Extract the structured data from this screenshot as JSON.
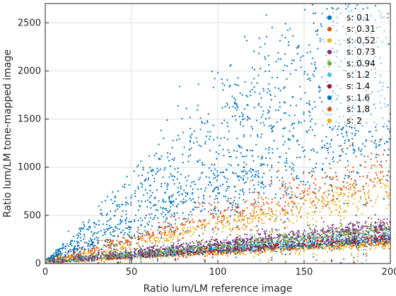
{
  "chart_data": {
    "type": "scatter",
    "title": "",
    "xlabel": "Ratio lum/LM reference image",
    "ylabel": "Ratio lum/LM tone-mapped image",
    "xlim": [
      0,
      200
    ],
    "ylim": [
      0,
      2700
    ],
    "xticks": [
      "0",
      "50",
      "100",
      "150",
      "200"
    ],
    "yticks": [
      "0",
      "500",
      "1000",
      "1500",
      "2000",
      "2500"
    ],
    "grid": true,
    "legend_position": "top-right",
    "series": [
      {
        "name": "s: 0.1",
        "color": "#0072BD",
        "slopes": [
          7.3,
          13.4
        ],
        "noise": 0.22
      },
      {
        "name": "s: 0.31",
        "color": "#D95319",
        "slopes": [
          4.6
        ],
        "noise": 0.18
      },
      {
        "name": "s: 0.52",
        "color": "#EDB120",
        "slopes": [
          3.7
        ],
        "noise": 0.12
      },
      {
        "name": "s: 0.73",
        "color": "#7E2F8E",
        "slopes": [
          1.9
        ],
        "noise": 0.12
      },
      {
        "name": "s: 0.94",
        "color": "#77AC30",
        "slopes": [
          1.7
        ],
        "noise": 0.1
      },
      {
        "name": "s: 1.2",
        "color": "#4DBEEE",
        "slopes": [
          1.5
        ],
        "noise": 0.1
      },
      {
        "name": "s: 1.4",
        "color": "#A2142F",
        "slopes": [
          1.3
        ],
        "noise": 0.1
      },
      {
        "name": "s: 1.6",
        "color": "#0072BD",
        "slopes": [
          1.15
        ],
        "noise": 0.1
      },
      {
        "name": "s: 1.8",
        "color": "#D95319",
        "slopes": [
          1.05
        ],
        "noise": 0.1
      },
      {
        "name": "s: 2",
        "color": "#EDB120",
        "slopes": [
          0.95
        ],
        "noise": 0.12
      }
    ]
  }
}
